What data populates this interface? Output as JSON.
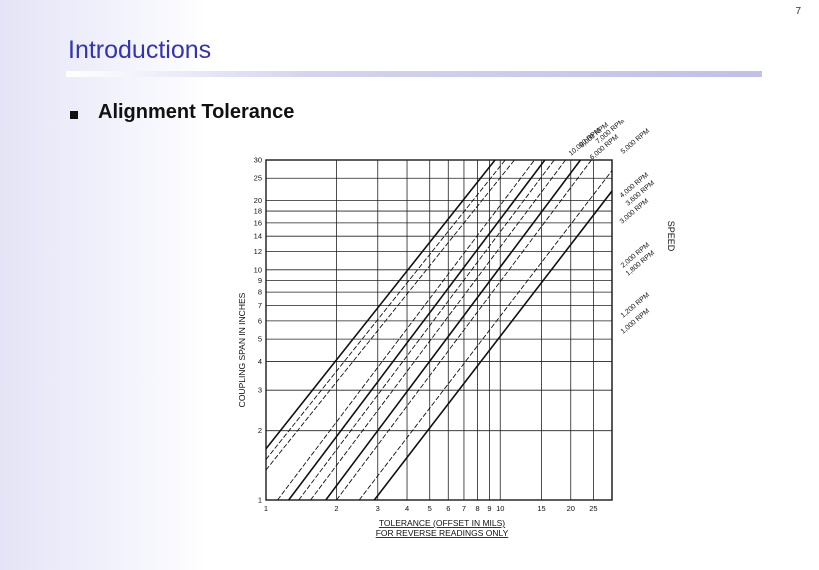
{
  "page_number": "7",
  "slide": {
    "title": "Introductions",
    "bullet": "Alignment Tolerance"
  },
  "colors": {
    "title": "#3333b3",
    "ink": "#111111"
  },
  "chart_data": {
    "type": "line",
    "xscale": "log",
    "yscale": "log",
    "grid": true,
    "xlabel": "TOLERANCE (OFFSET IN MILS)",
    "xlabel2": "FOR REVERSE READINGS ONLY",
    "ylabel": "COUPLING SPAN IN INCHES",
    "speed_label": "SPEED",
    "xlim": [
      1,
      30
    ],
    "ylim": [
      1,
      30
    ],
    "x_ticks": [
      1,
      2,
      3,
      4,
      5,
      6,
      7,
      8,
      9,
      10,
      15,
      20,
      25
    ],
    "y_ticks": [
      1,
      2,
      3,
      4,
      5,
      6,
      7,
      8,
      9,
      10,
      12,
      14,
      16,
      18,
      20,
      25,
      30
    ],
    "series": [
      {
        "name": "10,000 RPM",
        "points": [
          [
            1,
            1.67
          ],
          [
            9.5,
            30
          ]
        ]
      },
      {
        "name": "8,000 RPM",
        "points": [
          [
            1,
            1.5
          ],
          [
            10.5,
            30
          ]
        ]
      },
      {
        "name": "6,000 RPM",
        "points": [
          [
            1,
            1.35
          ],
          [
            11.5,
            30
          ]
        ]
      },
      {
        "name": "5,000 RPM",
        "points": [
          [
            1.12,
            1
          ],
          [
            14,
            30
          ]
        ]
      },
      {
        "name": "4,000 RPM",
        "points": [
          [
            1.25,
            1
          ],
          [
            15.5,
            30
          ]
        ]
      },
      {
        "name": "3,600 RPM",
        "points": [
          [
            1.38,
            1
          ],
          [
            17,
            30
          ]
        ]
      },
      {
        "name": "3,000 RPM",
        "points": [
          [
            1.55,
            1
          ],
          [
            19,
            30
          ]
        ]
      },
      {
        "name": "2,000 RPM",
        "points": [
          [
            1.8,
            1
          ],
          [
            22,
            30
          ]
        ]
      },
      {
        "name": "1,800 RPM",
        "points": [
          [
            2.0,
            1
          ],
          [
            24.5,
            30
          ]
        ]
      },
      {
        "name": "1,200 RPM",
        "points": [
          [
            2.5,
            1
          ],
          [
            30,
            27
          ]
        ]
      },
      {
        "name": "1,000 RPM",
        "points": [
          [
            2.9,
            1
          ],
          [
            30,
            22
          ]
        ]
      }
    ],
    "bold_series": [
      "10,000 RPM",
      "4,000 RPM",
      "2,000 RPM",
      "1,000 RPM"
    ],
    "labels": {
      "10,000 RPM": "10,000 RPM",
      "8,000 RPM": "8,000 RPM",
      "7,000 RPM": "7,000 RPM",
      "6,000 RPM": "6,000 RPM",
      "5,000 RPM": "5,000 RPM",
      "4,000 RPM": "4,000 RPM",
      "3,600 RPM": "3,600 RPM",
      "3,000 RPM": "3,000 RPM",
      "2,000 RPM": "2,000 RPM",
      "1,800 RPM": "1,800 RPM",
      "1,200 RPM": "1,200 RPM",
      "1,000 RPM": "1,000 RPM"
    }
  }
}
